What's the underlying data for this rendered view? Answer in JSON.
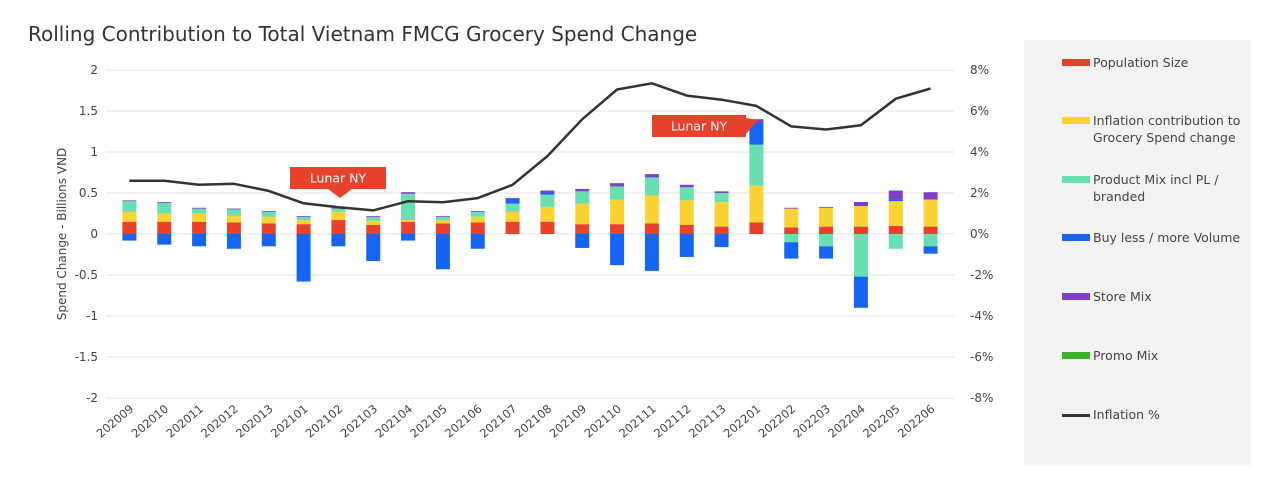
{
  "chart_data": {
    "type": "bar",
    "title": "Rolling Contribution to Total Vietnam FMCG Grocery Spend Change",
    "ylabel": "Spend Change - Billions VND",
    "ylim": [
      -2,
      2
    ],
    "yticks": [
      "2",
      "1.5",
      "1",
      "0.5",
      "0",
      "-0.5",
      "-1",
      "-1.5",
      "-2"
    ],
    "ytick_values": [
      2,
      1.5,
      1,
      0.5,
      0,
      -0.5,
      -1,
      -1.5,
      -2
    ],
    "y2lim": [
      -8,
      8
    ],
    "y2ticks": [
      "8%",
      "6%",
      "4%",
      "2%",
      "0%",
      "-2%",
      "-4%",
      "-6%",
      "-8%"
    ],
    "y2tick_values": [
      8,
      6,
      4,
      2,
      0,
      -2,
      -4,
      -6,
      -8
    ],
    "categories": [
      "202009",
      "202010",
      "202011",
      "202012",
      "202013",
      "202101",
      "202102",
      "202103",
      "202104",
      "202105",
      "202106",
      "202107",
      "202108",
      "202109",
      "202110",
      "202111",
      "202112",
      "202113",
      "202201",
      "202202",
      "202203",
      "202204",
      "202205",
      "202206"
    ],
    "series": [
      {
        "name": "Population Size",
        "color": "#e8412c",
        "values": [
          0.15,
          0.15,
          0.15,
          0.14,
          0.13,
          0.12,
          0.17,
          0.11,
          0.15,
          0.13,
          0.14,
          0.15,
          0.15,
          0.12,
          0.12,
          0.13,
          0.11,
          0.09,
          0.14,
          0.08,
          0.09,
          0.09,
          0.1,
          0.09
        ]
      },
      {
        "name": "Inflation contribution to Grocery Spend change",
        "color": "#fad232",
        "values": [
          0.12,
          0.1,
          0.1,
          0.08,
          0.08,
          0.05,
          0.1,
          0.05,
          0.02,
          0.04,
          0.07,
          0.12,
          0.18,
          0.25,
          0.3,
          0.34,
          0.3,
          0.3,
          0.45,
          0.23,
          0.23,
          0.25,
          0.3,
          0.33
        ]
      },
      {
        "name": "Product Mix incl PL / branded",
        "color": "#66e0b0",
        "values": [
          0.13,
          0.13,
          0.06,
          0.08,
          0.06,
          0.04,
          0.04,
          0.05,
          0.32,
          0.04,
          0.06,
          0.1,
          0.15,
          0.15,
          0.16,
          0.22,
          0.16,
          0.11,
          0.5,
          -0.1,
          -0.15,
          -0.52,
          -0.18,
          -0.15
        ]
      },
      {
        "name": "Buy less / more Volume",
        "color": "#1665f2",
        "values": [
          -0.08,
          -0.13,
          -0.15,
          -0.18,
          -0.15,
          -0.58,
          -0.15,
          -0.33,
          -0.08,
          -0.43,
          -0.18,
          0.06,
          0.02,
          -0.17,
          -0.38,
          -0.45,
          -0.28,
          -0.16,
          0.27,
          -0.2,
          -0.15,
          -0.38,
          0.02,
          -0.09
        ]
      },
      {
        "name": "Store Mix",
        "color": "#7e3fc9",
        "values": [
          0.01,
          0.01,
          0.01,
          0.01,
          0.01,
          0.01,
          0.01,
          0.01,
          0.02,
          0.01,
          0.01,
          0.01,
          0.03,
          0.03,
          0.04,
          0.04,
          0.03,
          0.02,
          0.04,
          0.01,
          0.01,
          0.05,
          0.11,
          0.09
        ]
      },
      {
        "name": "Promo Mix",
        "color": "#3db02a",
        "values": [
          0,
          0,
          0,
          0,
          0,
          0,
          0,
          0,
          0,
          0,
          0,
          0,
          0,
          0,
          0,
          0,
          0,
          0,
          0,
          0,
          0,
          0,
          0,
          0
        ]
      }
    ],
    "line": {
      "name": "Inflation %",
      "color": "#333333",
      "axis": "right",
      "values": [
        2.6,
        2.6,
        2.4,
        2.45,
        2.1,
        1.5,
        1.3,
        1.15,
        1.6,
        1.55,
        1.75,
        2.4,
        3.8,
        5.6,
        7.05,
        7.35,
        6.75,
        6.55,
        6.25,
        5.25,
        5.1,
        5.3,
        6.6,
        7.1
      ]
    },
    "annotations": [
      {
        "text": "Lunar NY",
        "category": "202102"
      },
      {
        "text": "Lunar NY",
        "category": "202201"
      }
    ],
    "legend_position": "right"
  },
  "legend": [
    {
      "label": "Population Size",
      "color": "#e8412c",
      "kind": "bar"
    },
    {
      "label": "Inflation contribution to Grocery Spend change",
      "color": "#fad232",
      "kind": "bar"
    },
    {
      "label": "Product Mix incl PL / branded",
      "color": "#66e0b0",
      "kind": "bar"
    },
    {
      "label": "Buy less / more Volume",
      "color": "#1665f2",
      "kind": "bar"
    },
    {
      "label": "Store Mix",
      "color": "#7e3fc9",
      "kind": "bar"
    },
    {
      "label": "Promo Mix",
      "color": "#3db02a",
      "kind": "bar"
    },
    {
      "label": "Inflation %",
      "color": "#333333",
      "kind": "line"
    }
  ]
}
